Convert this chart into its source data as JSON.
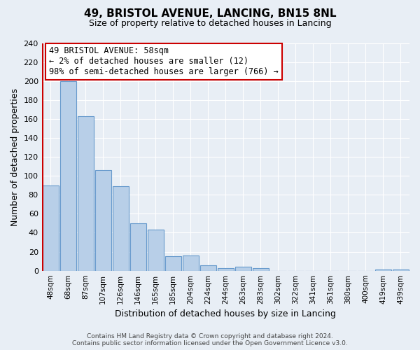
{
  "title": "49, BRISTOL AVENUE, LANCING, BN15 8NL",
  "subtitle": "Size of property relative to detached houses in Lancing",
  "xlabel": "Distribution of detached houses by size in Lancing",
  "ylabel": "Number of detached properties",
  "bar_labels": [
    "48sqm",
    "68sqm",
    "87sqm",
    "107sqm",
    "126sqm",
    "146sqm",
    "165sqm",
    "185sqm",
    "204sqm",
    "224sqm",
    "244sqm",
    "263sqm",
    "283sqm",
    "302sqm",
    "322sqm",
    "341sqm",
    "361sqm",
    "380sqm",
    "400sqm",
    "419sqm",
    "439sqm"
  ],
  "bar_values": [
    90,
    200,
    163,
    106,
    89,
    50,
    43,
    15,
    16,
    6,
    3,
    4,
    3,
    0,
    0,
    0,
    0,
    0,
    0,
    1,
    1
  ],
  "bar_color": "#b8cfe8",
  "bar_edge_color": "#6699cc",
  "annotation_title": "49 BRISTOL AVENUE: 58sqm",
  "annotation_line1": "← 2% of detached houses are smaller (12)",
  "annotation_line2": "98% of semi-detached houses are larger (766) →",
  "annotation_box_color": "#ffffff",
  "annotation_border_color": "#cc0000",
  "red_line_color": "#cc0000",
  "ylim": [
    0,
    240
  ],
  "yticks": [
    0,
    20,
    40,
    60,
    80,
    100,
    120,
    140,
    160,
    180,
    200,
    220,
    240
  ],
  "footer_line1": "Contains HM Land Registry data © Crown copyright and database right 2024.",
  "footer_line2": "Contains public sector information licensed under the Open Government Licence v3.0.",
  "background_color": "#e8eef5",
  "plot_bg_color": "#e8eef5",
  "grid_color": "#ffffff"
}
